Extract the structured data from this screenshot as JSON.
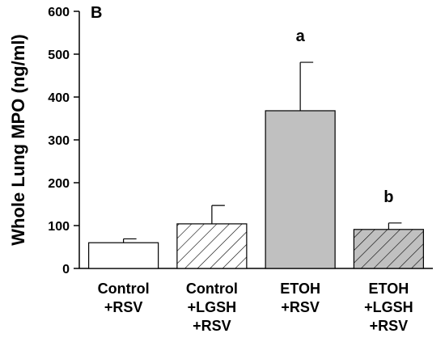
{
  "panel_label": "B",
  "chart_data": {
    "type": "bar",
    "categories": [
      [
        "Control",
        "+RSV"
      ],
      [
        "Control",
        "+LGSH",
        "+RSV"
      ],
      [
        "ETOH",
        "+RSV"
      ],
      [
        "ETOH",
        "+LGSH",
        "+RSV"
      ]
    ],
    "values": [
      60,
      104,
      368,
      91
    ],
    "errors": [
      9,
      43,
      113,
      15
    ],
    "annotations": [
      "",
      "",
      "a",
      "b"
    ],
    "fills": [
      "white",
      "hatch",
      "#c0c0c0",
      "hatch-gray"
    ],
    "ylabel": "Whole Lung MPO (ng/ml)",
    "ylim": [
      0,
      600
    ],
    "yticks": [
      0,
      100,
      200,
      300,
      400,
      500,
      600
    ],
    "grid": false,
    "legend": false
  }
}
